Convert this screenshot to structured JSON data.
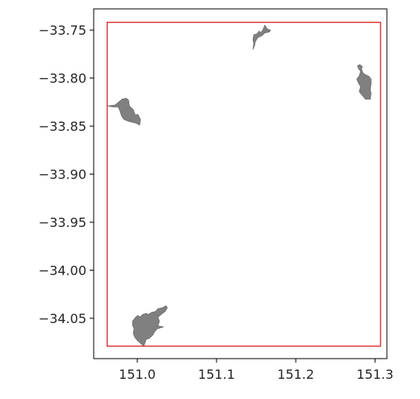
{
  "chart_data": {
    "type": "map",
    "title": "",
    "xlabel": "",
    "ylabel": "",
    "xlim": [
      150.945,
      151.315
    ],
    "ylim": [
      -34.092,
      -33.728
    ],
    "grid": false,
    "legend": "none",
    "x_ticks": [
      {
        "value": 151.0,
        "label": "151.0"
      },
      {
        "value": 151.1,
        "label": "151.1"
      },
      {
        "value": 151.2,
        "label": "151.2"
      },
      {
        "value": 151.3,
        "label": "151.3"
      }
    ],
    "y_ticks": [
      {
        "value": -33.75,
        "label": "−33.75"
      },
      {
        "value": -33.8,
        "label": "−33.80"
      },
      {
        "value": -33.85,
        "label": "−33.85"
      },
      {
        "value": -33.9,
        "label": "−33.90"
      },
      {
        "value": -33.95,
        "label": "−33.95"
      },
      {
        "value": -34.0,
        "label": "−34.00"
      },
      {
        "value": -34.05,
        "label": "−34.05"
      }
    ],
    "bounding_box": {
      "xmin": 150.962,
      "xmax": 151.307,
      "ymin": -34.079,
      "ymax": -33.742,
      "color": "#d62728"
    },
    "region_fill_color": "#808080",
    "region_edge_color": "#6a6a6a",
    "regions": [
      {
        "id": "west-region",
        "points": [
          [
            150.963,
            -33.829
          ],
          [
            150.972,
            -33.828
          ],
          [
            150.981,
            -33.822
          ],
          [
            150.986,
            -33.821
          ],
          [
            150.989,
            -33.823
          ],
          [
            150.99,
            -33.829
          ],
          [
            150.995,
            -33.833
          ],
          [
            150.997,
            -33.838
          ],
          [
            151.001,
            -33.838
          ],
          [
            151.004,
            -33.843
          ],
          [
            151.003,
            -33.849
          ],
          [
            150.999,
            -33.847
          ],
          [
            150.994,
            -33.846
          ],
          [
            150.989,
            -33.845
          ],
          [
            150.983,
            -33.843
          ],
          [
            150.98,
            -33.839
          ],
          [
            150.978,
            -33.834
          ],
          [
            150.976,
            -33.83
          ],
          [
            150.969,
            -33.83
          ]
        ]
      },
      {
        "id": "north-region",
        "points": [
          [
            151.146,
            -33.77
          ],
          [
            151.147,
            -33.764
          ],
          [
            151.146,
            -33.76
          ],
          [
            151.147,
            -33.755
          ],
          [
            151.151,
            -33.754
          ],
          [
            151.154,
            -33.751
          ],
          [
            151.156,
            -33.753
          ],
          [
            151.159,
            -33.749
          ],
          [
            151.161,
            -33.745
          ],
          [
            151.164,
            -33.749
          ],
          [
            151.168,
            -33.75
          ],
          [
            151.167,
            -33.752
          ],
          [
            151.161,
            -33.753
          ],
          [
            151.157,
            -33.756
          ],
          [
            151.152,
            -33.758
          ],
          [
            151.149,
            -33.762
          ],
          [
            151.148,
            -33.766
          ]
        ]
      },
      {
        "id": "east-region",
        "points": [
          [
            151.278,
            -33.787
          ],
          [
            151.281,
            -33.786
          ],
          [
            151.284,
            -33.788
          ],
          [
            151.283,
            -33.791
          ],
          [
            151.285,
            -33.795
          ],
          [
            151.289,
            -33.797
          ],
          [
            151.292,
            -33.798
          ],
          [
            151.295,
            -33.801
          ],
          [
            151.295,
            -33.806
          ],
          [
            151.294,
            -33.812
          ],
          [
            151.295,
            -33.816
          ],
          [
            151.294,
            -33.822
          ],
          [
            151.288,
            -33.822
          ],
          [
            151.284,
            -33.818
          ],
          [
            151.28,
            -33.814
          ],
          [
            151.282,
            -33.809
          ],
          [
            151.279,
            -33.805
          ],
          [
            151.277,
            -33.801
          ],
          [
            151.28,
            -33.798
          ],
          [
            151.282,
            -33.793
          ],
          [
            151.279,
            -33.79
          ]
        ]
      },
      {
        "id": "south-region",
        "points": [
          [
            150.994,
            -34.053
          ],
          [
            150.998,
            -34.049
          ],
          [
            151.001,
            -34.047
          ],
          [
            151.003,
            -34.049
          ],
          [
            151.007,
            -34.046
          ],
          [
            151.011,
            -34.045
          ],
          [
            151.014,
            -34.046
          ],
          [
            151.018,
            -34.044
          ],
          [
            151.023,
            -34.043
          ],
          [
            151.026,
            -34.04
          ],
          [
            151.032,
            -34.039
          ],
          [
            151.036,
            -34.037
          ],
          [
            151.038,
            -34.039
          ],
          [
            151.035,
            -34.043
          ],
          [
            151.03,
            -34.046
          ],
          [
            151.026,
            -34.049
          ],
          [
            151.028,
            -34.053
          ],
          [
            151.026,
            -34.058
          ],
          [
            151.033,
            -34.059
          ],
          [
            151.025,
            -34.061
          ],
          [
            151.022,
            -34.064
          ],
          [
            151.019,
            -34.068
          ],
          [
            151.015,
            -34.071
          ],
          [
            151.011,
            -34.072
          ],
          [
            151.01,
            -34.075
          ],
          [
            151.008,
            -34.079
          ],
          [
            151.004,
            -34.076
          ],
          [
            151.0,
            -34.073
          ],
          [
            150.997,
            -34.07
          ],
          [
            150.995,
            -34.066
          ],
          [
            150.996,
            -34.061
          ],
          [
            150.994,
            -34.057
          ]
        ]
      }
    ]
  }
}
